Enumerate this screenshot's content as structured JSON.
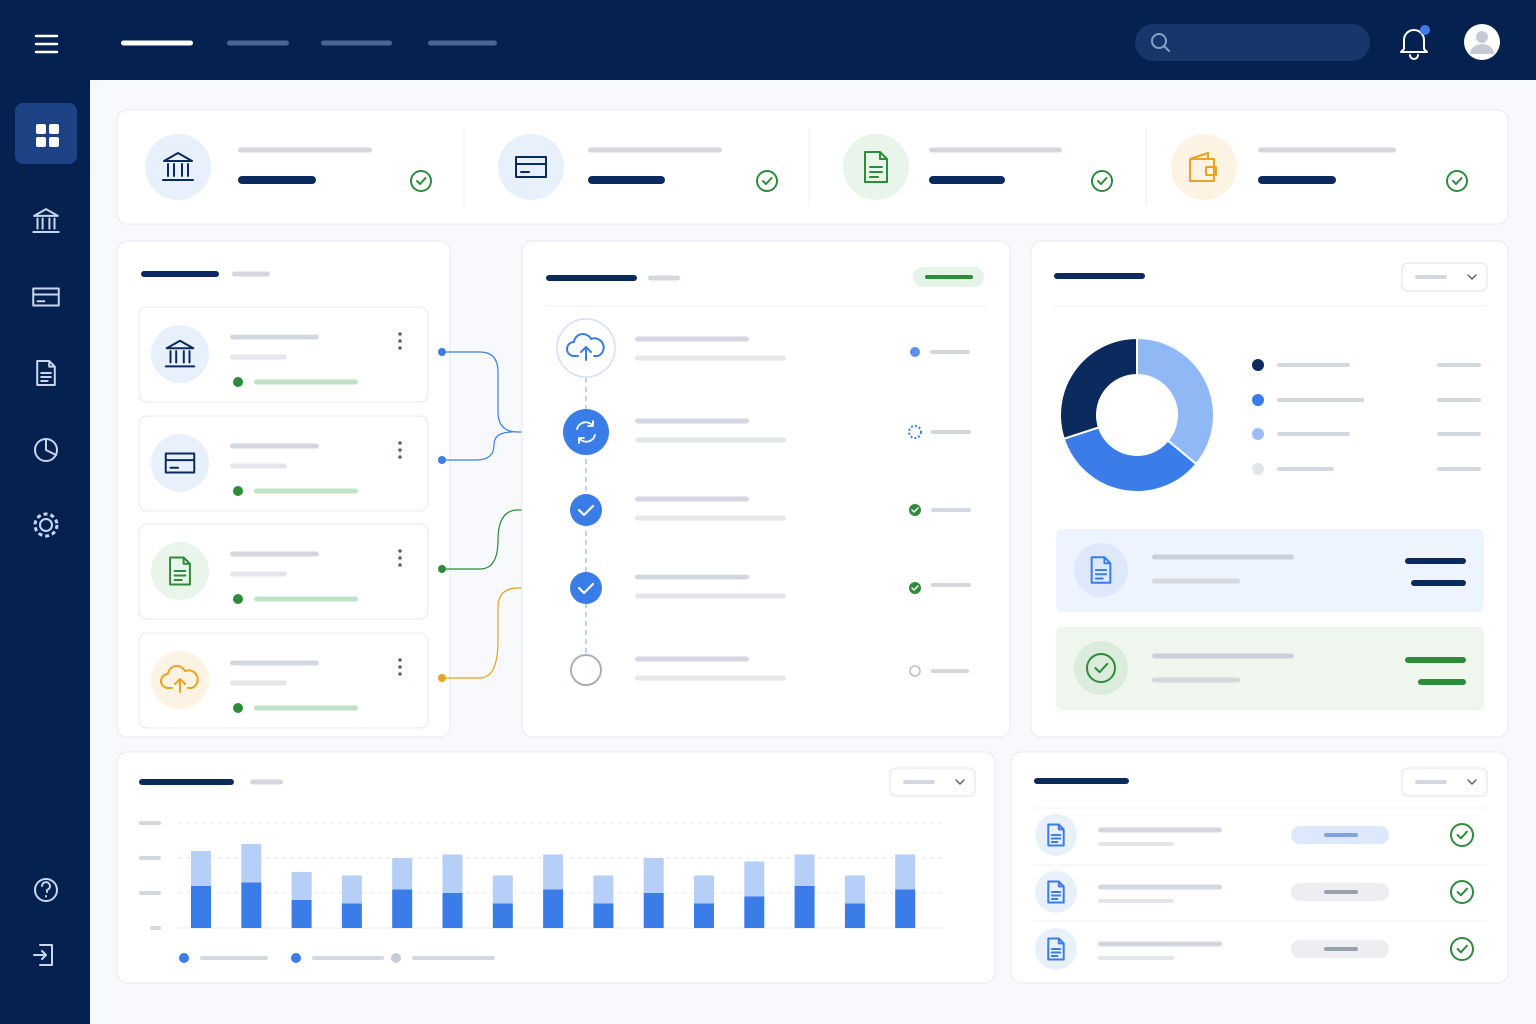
{
  "donut": {
    "type": "pie",
    "values": [
      36,
      34,
      30
    ],
    "colors": [
      "#8fb8f5",
      "#3b7de8",
      "#0b2a5e"
    ]
  },
  "bar_chart": {
    "type": "bar",
    "stacked": true,
    "ylim": [
      0,
      3
    ],
    "yticks": [
      0,
      1,
      2,
      3
    ],
    "grid": true,
    "series": [
      {
        "color": "#3b7de8",
        "values": [
          1.2,
          1.3,
          0.8,
          0.7,
          1.1,
          1.0,
          0.7,
          1.1,
          0.7,
          1.0,
          0.7,
          0.9,
          1.2,
          0.7,
          1.1
        ]
      },
      {
        "color": "#b5cff7",
        "values": [
          1.0,
          1.1,
          0.8,
          0.8,
          0.9,
          1.1,
          0.8,
          1.0,
          0.8,
          1.0,
          0.8,
          1.0,
          0.9,
          0.8,
          1.0
        ]
      }
    ]
  }
}
